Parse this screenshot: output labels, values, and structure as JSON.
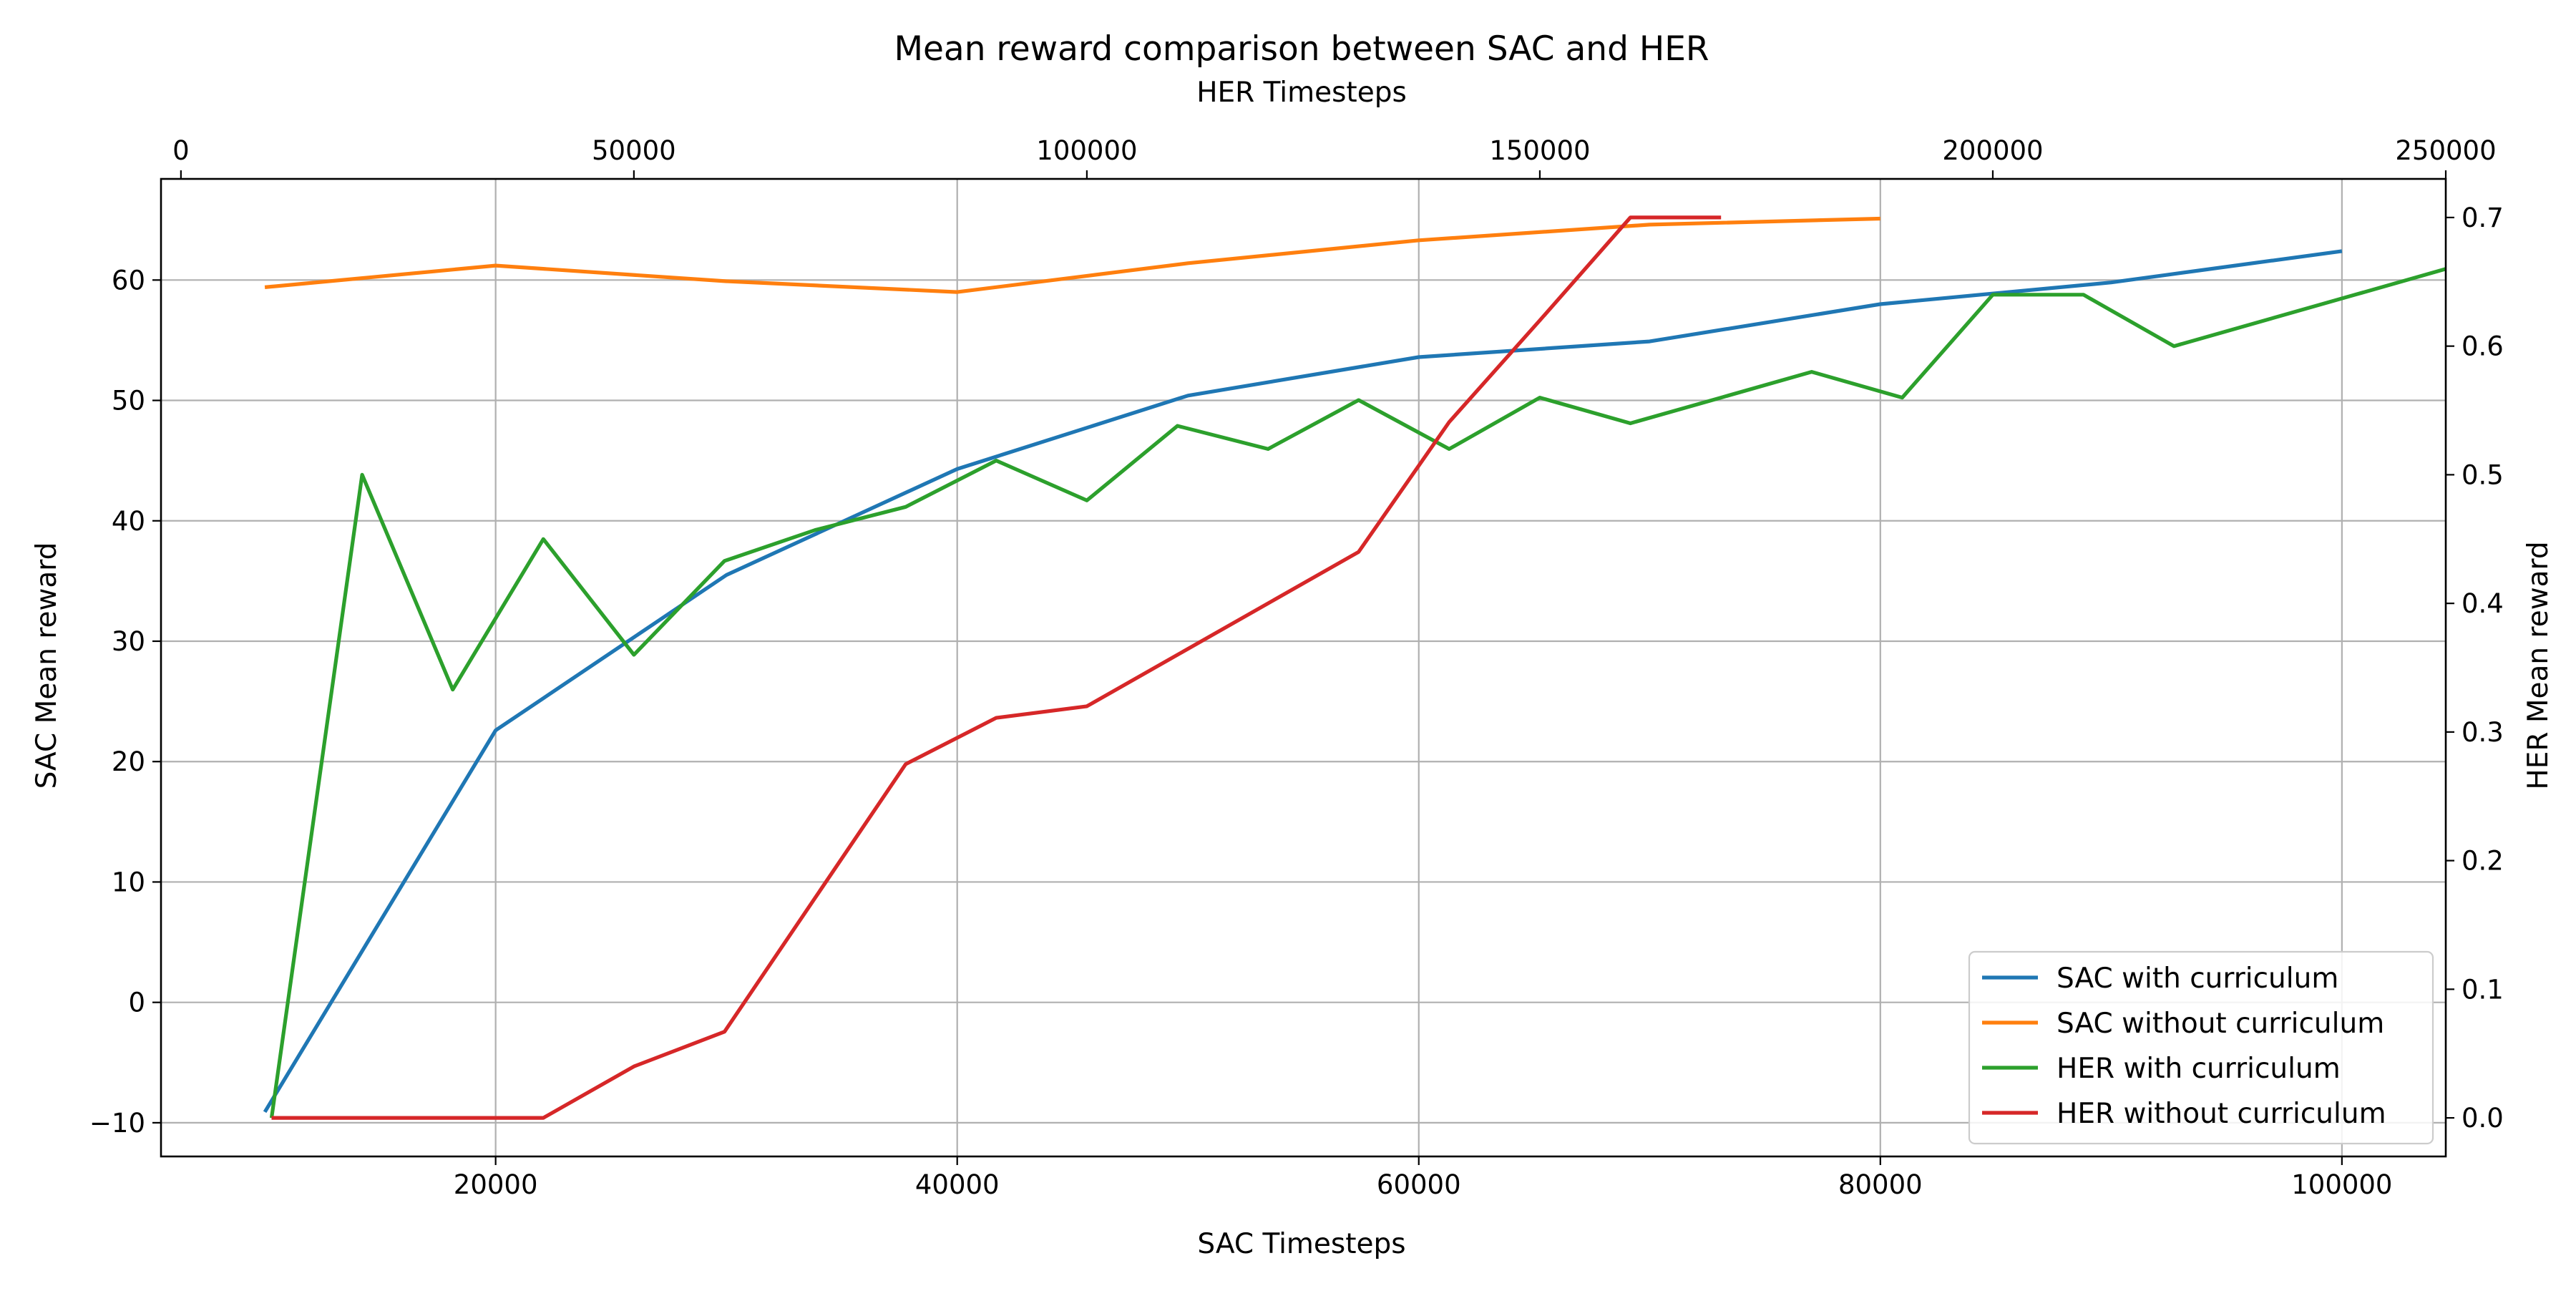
{
  "chart_data": {
    "type": "line",
    "title": "Mean reward comparison between SAC and HER",
    "xlabel": "SAC Timesteps",
    "ylabel": "SAC Mean reward",
    "x2label": "HER Timesteps",
    "y2label": "HER Mean reward",
    "xlim": [
      5500,
      104500
    ],
    "ylim": [
      -12.8,
      68.4
    ],
    "x2lim": [
      -2200,
      250000
    ],
    "y2lim": [
      -0.03,
      0.73
    ],
    "grid": true,
    "legend_position": "lower-right",
    "x_ticks": [
      20000,
      40000,
      60000,
      80000,
      100000
    ],
    "x_tick_labels": [
      "20000",
      "40000",
      "60000",
      "80000",
      "100000"
    ],
    "y_ticks": [
      -10,
      0,
      10,
      20,
      30,
      40,
      50,
      60
    ],
    "y_tick_labels": [
      "−10",
      "0",
      "10",
      "20",
      "30",
      "40",
      "50",
      "60"
    ],
    "x2_ticks": [
      0,
      50000,
      100000,
      150000,
      200000,
      250000
    ],
    "x2_tick_labels": [
      "0",
      "50000",
      "100000",
      "150000",
      "200000",
      "250000"
    ],
    "y2_ticks": [
      0.0,
      0.1,
      0.2,
      0.3,
      0.4,
      0.5,
      0.6,
      0.7
    ],
    "y2_tick_labels": [
      "0.0",
      "0.1",
      "0.2",
      "0.3",
      "0.4",
      "0.5",
      "0.6",
      "0.7"
    ],
    "series": [
      {
        "name": "SAC with curriculum",
        "axis": "primary",
        "color": "#1f77b4",
        "x": [
          10000,
          20000,
          30000,
          40000,
          50000,
          60000,
          70000,
          80000,
          90000,
          100000
        ],
        "y": [
          -9.1,
          22.6,
          35.5,
          44.3,
          50.4,
          53.6,
          54.9,
          58.0,
          59.8,
          62.4
        ]
      },
      {
        "name": "SAC without curriculum",
        "axis": "primary",
        "color": "#ff7f0e",
        "x": [
          10000,
          20000,
          30000,
          40000,
          50000,
          60000,
          70000,
          80000
        ],
        "y": [
          59.4,
          61.2,
          59.9,
          59.0,
          61.4,
          63.3,
          64.6,
          65.1
        ]
      },
      {
        "name": "HER with curriculum",
        "axis": "secondary",
        "color": "#2ca02c",
        "x": [
          10000,
          20000,
          30000,
          40000,
          50000,
          60000,
          70000,
          80000,
          90000,
          100000,
          110000,
          120000,
          130000,
          140000,
          150000,
          160000,
          170000,
          180000,
          190000,
          200000,
          210000,
          220000,
          230000,
          240000,
          250000
        ],
        "y": [
          0.0,
          0.5,
          0.333,
          0.45,
          0.36,
          0.433,
          0.457,
          0.475,
          0.511,
          0.48,
          0.538,
          0.52,
          0.558,
          0.52,
          0.56,
          0.54,
          0.56,
          0.58,
          0.56,
          0.64,
          0.64,
          0.6,
          0.62,
          0.64,
          0.66
        ]
      },
      {
        "name": "HER without curriculum",
        "axis": "secondary",
        "color": "#d62728",
        "x": [
          10000,
          20000,
          30000,
          40000,
          50000,
          60000,
          70000,
          80000,
          90000,
          100000,
          110000,
          120000,
          130000,
          140000,
          150000,
          160000,
          170000
        ],
        "y": [
          0.0,
          0.0,
          0.0,
          0.0,
          0.04,
          0.067,
          0.171,
          0.275,
          0.311,
          0.32,
          0.36,
          0.4,
          0.44,
          0.541,
          0.62,
          0.7,
          0.7
        ]
      }
    ]
  }
}
